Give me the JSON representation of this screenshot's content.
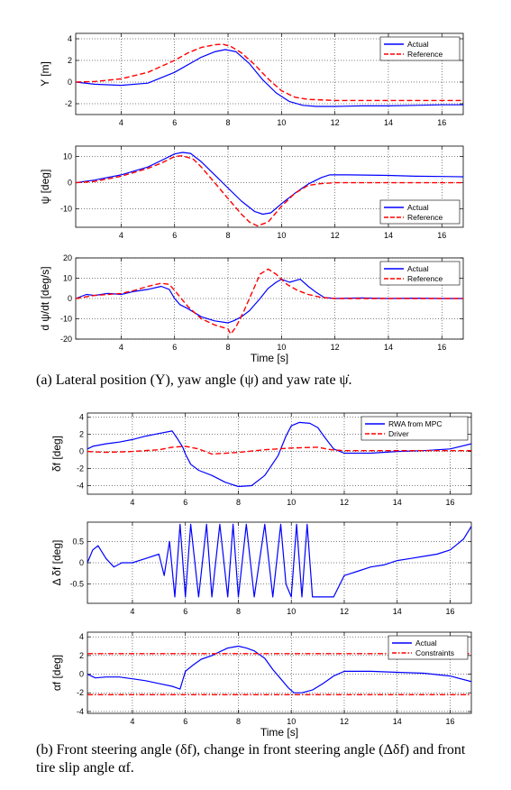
{
  "captions": {
    "a": "(a) Lateral position (Y), yaw angle (ψ) and yaw rate ψ̇.",
    "b": "(b) Front steering angle (δf), change in front steering angle (Δδf) and front tire slip angle αf."
  },
  "chart_data": [
    {
      "type": "line",
      "ylabel": "Y [m]",
      "xlabel": "",
      "xlim": [
        2.3,
        16.8
      ],
      "ylim": [
        -3,
        4.5
      ],
      "xticks": [
        4,
        6,
        8,
        10,
        12,
        14,
        16
      ],
      "yticks": [
        -2,
        0,
        2,
        4
      ],
      "grid": true,
      "legend_position": "top-right",
      "colors": {
        "Actual": "#0000ff",
        "Reference": "#ff0000"
      },
      "series": [
        {
          "name": "Actual",
          "style": "solid",
          "x": [
            2.3,
            3,
            4,
            5,
            6,
            7,
            7.5,
            7.9,
            8.3,
            8.8,
            9.3,
            9.8,
            10.3,
            10.8,
            11.3,
            12,
            13,
            14,
            15,
            16,
            16.8
          ],
          "y": [
            0,
            -0.2,
            -0.3,
            -0.1,
            0.9,
            2.3,
            2.8,
            3.0,
            2.8,
            1.7,
            0.2,
            -1.0,
            -1.8,
            -2.15,
            -2.25,
            -2.25,
            -2.2,
            -2.2,
            -2.15,
            -2.1,
            -2.1
          ]
        },
        {
          "name": "Reference",
          "style": "dashed",
          "x": [
            2.3,
            3,
            4,
            5,
            6,
            6.5,
            7,
            7.5,
            7.8,
            8.1,
            8.5,
            9,
            9.5,
            10,
            10.5,
            11,
            12,
            13,
            14,
            15,
            16,
            16.8
          ],
          "y": [
            0,
            0.05,
            0.3,
            0.9,
            2.0,
            2.7,
            3.2,
            3.45,
            3.5,
            3.3,
            2.7,
            1.6,
            0.3,
            -0.8,
            -1.4,
            -1.6,
            -1.7,
            -1.7,
            -1.7,
            -1.7,
            -1.7,
            -1.7
          ]
        }
      ]
    },
    {
      "type": "line",
      "ylabel": "ψ [deg]",
      "xlabel": "",
      "xlim": [
        2.3,
        16.8
      ],
      "ylim": [
        -17,
        14
      ],
      "xticks": [
        4,
        6,
        8,
        10,
        12,
        14,
        16
      ],
      "yticks": [
        -10,
        0,
        10
      ],
      "grid": true,
      "legend_position": "bottom-right",
      "colors": {
        "Actual": "#0000ff",
        "Reference": "#ff0000"
      },
      "series": [
        {
          "name": "Actual",
          "style": "solid",
          "x": [
            2.3,
            3,
            4,
            5,
            5.5,
            6,
            6.3,
            6.6,
            7,
            7.5,
            8,
            8.5,
            9,
            9.3,
            9.6,
            10,
            10.5,
            11,
            11.5,
            11.8,
            12.5,
            14,
            15,
            16,
            16.8
          ],
          "y": [
            0,
            1,
            3,
            6,
            8.5,
            11,
            11.6,
            11.2,
            8,
            3,
            -2,
            -7,
            -11,
            -12,
            -11.5,
            -8,
            -4,
            -0.5,
            2,
            3,
            3,
            2.8,
            2.5,
            2.4,
            2.3
          ]
        },
        {
          "name": "Reference",
          "style": "dashed",
          "x": [
            2.3,
            3,
            4,
            5,
            5.5,
            6,
            6.3,
            6.7,
            7,
            7.5,
            8,
            8.5,
            8.8,
            9.1,
            9.5,
            10,
            10.5,
            11,
            11.5,
            12,
            13,
            14,
            15,
            16,
            16.8
          ],
          "y": [
            0,
            0.5,
            2.5,
            5.5,
            7.5,
            10,
            10.3,
            9,
            6,
            0,
            -6,
            -12,
            -15,
            -16.5,
            -15,
            -9,
            -4,
            -1,
            -0.3,
            0,
            0,
            0,
            0,
            0,
            0
          ]
        }
      ]
    },
    {
      "type": "line",
      "ylabel": "d ψ/dt [deg/s]",
      "xlabel": "Time [s]",
      "xlim": [
        2.3,
        16.8
      ],
      "ylim": [
        -20,
        20
      ],
      "xticks": [
        4,
        6,
        8,
        10,
        12,
        14,
        16
      ],
      "yticks": [
        -20,
        -10,
        0,
        10,
        20
      ],
      "grid": true,
      "legend_position": "top-right",
      "colors": {
        "Actual": "#0000ff",
        "Reference": "#ff0000"
      },
      "series": [
        {
          "name": "Actual",
          "style": "solid",
          "x": [
            2.3,
            2.7,
            3,
            3.5,
            4,
            4.5,
            5,
            5.5,
            5.8,
            6,
            6.2,
            6.5,
            7,
            7.5,
            8,
            8.2,
            8.5,
            8.8,
            9.2,
            9.5,
            9.8,
            10,
            10.3,
            10.7,
            11,
            11.3,
            11.6,
            12,
            13,
            14,
            15,
            16,
            16.8
          ],
          "y": [
            0,
            2,
            1.5,
            2.5,
            2,
            3.5,
            4.5,
            6,
            4.5,
            0,
            -3,
            -5,
            -9,
            -11,
            -12,
            -11,
            -9,
            -6,
            0,
            5,
            8,
            9.5,
            8,
            9.5,
            6,
            3,
            0.5,
            0,
            0.3,
            0,
            0.2,
            0,
            0
          ]
        },
        {
          "name": "Reference",
          "style": "dashed",
          "x": [
            2.3,
            3,
            4,
            4.5,
            5,
            5.5,
            5.8,
            6,
            6.5,
            7,
            7.5,
            8,
            8.1,
            8.3,
            8.6,
            8.9,
            9.2,
            9.5,
            9.8,
            10.2,
            10.6,
            11,
            11.5,
            12,
            13,
            14,
            15,
            16,
            16.8
          ],
          "y": [
            0,
            1.5,
            2.5,
            4,
            6,
            7.5,
            7,
            4,
            -4,
            -10,
            -13,
            -15,
            -17.5,
            -14,
            -6,
            3,
            12,
            14.5,
            12,
            7,
            4,
            2,
            0.5,
            0,
            0,
            0,
            0,
            0,
            0
          ]
        }
      ]
    },
    {
      "type": "line",
      "ylabel": "δf [deg]",
      "xlabel": "",
      "xlim": [
        2.3,
        16.8
      ],
      "ylim": [
        -5,
        4.5
      ],
      "xticks": [
        4,
        6,
        8,
        10,
        12,
        14,
        16
      ],
      "yticks": [
        -4,
        -2,
        0,
        2,
        4
      ],
      "grid": true,
      "legend_position": "top-right",
      "colors": {
        "RWA from MPC": "#0000ff",
        "Driver": "#ff0000"
      },
      "series": [
        {
          "name": "RWA from MPC",
          "style": "solid",
          "x": [
            2.3,
            2.5,
            3,
            3.5,
            4,
            4.5,
            5,
            5.5,
            5.7,
            5.9,
            6,
            6.2,
            6.5,
            7,
            7.5,
            8,
            8.5,
            9,
            9.5,
            9.8,
            10,
            10.3,
            10.7,
            11,
            11.3,
            11.6,
            12,
            13,
            14,
            15,
            16,
            16.8
          ],
          "y": [
            0.3,
            0.6,
            0.9,
            1.1,
            1.4,
            1.8,
            2.1,
            2.4,
            1.5,
            0.5,
            -0.3,
            -1.5,
            -2.2,
            -2.8,
            -3.6,
            -4.1,
            -4.0,
            -2.8,
            -0.5,
            1.8,
            3.0,
            3.4,
            3.3,
            2.8,
            1.5,
            0.3,
            -0.2,
            -0.2,
            0,
            0.1,
            0.3,
            0.9
          ]
        },
        {
          "name": "Driver",
          "style": "dashed",
          "x": [
            2.3,
            3,
            4,
            5,
            5.5,
            6,
            6.5,
            7,
            8,
            9,
            10,
            11,
            11.5,
            12,
            13,
            14,
            15,
            16,
            16.8
          ],
          "y": [
            0,
            -0.1,
            0,
            0.2,
            0.5,
            0.6,
            0.3,
            -0.3,
            -0.1,
            0.2,
            0.4,
            0.5,
            0.2,
            0.1,
            0.1,
            0.1,
            0.1,
            0.1,
            0.1
          ]
        }
      ]
    },
    {
      "type": "line",
      "ylabel": "Δ δf [deg]",
      "xlabel": "",
      "xlim": [
        2.3,
        16.8
      ],
      "ylim": [
        -0.95,
        0.95
      ],
      "xticks": [
        4,
        6,
        8,
        10,
        12,
        14,
        16
      ],
      "yticks": [
        -0.5,
        0,
        0.5
      ],
      "grid": true,
      "legend_position": "none",
      "colors": {
        "line": "#0000ff"
      },
      "series": [
        {
          "name": "",
          "style": "solid",
          "x": [
            2.3,
            2.5,
            2.7,
            3,
            3.3,
            3.6,
            4,
            4.5,
            5,
            5.2,
            5.4,
            5.6,
            5.8,
            6.0,
            6.2,
            6.5,
            6.8,
            7.0,
            7.3,
            7.6,
            7.8,
            8.0,
            8.3,
            8.6,
            9.0,
            9.3,
            9.6,
            9.8,
            10.0,
            10.2,
            10.4,
            10.6,
            10.8,
            11.0,
            11.3,
            11.6,
            12,
            12.5,
            13,
            13.5,
            14,
            14.5,
            15,
            15.5,
            16,
            16.5,
            16.8
          ],
          "y": [
            0.0,
            0.3,
            0.4,
            0.1,
            -0.1,
            0.0,
            0.0,
            0.1,
            0.2,
            -0.3,
            0.5,
            -0.8,
            0.9,
            -0.8,
            0.9,
            -0.8,
            0.9,
            -0.8,
            0.9,
            -0.8,
            0.9,
            -0.8,
            0.9,
            -0.8,
            0.9,
            -0.8,
            0.9,
            -0.5,
            -0.8,
            0.9,
            -0.8,
            0.9,
            -0.8,
            -0.8,
            -0.8,
            -0.8,
            -0.3,
            -0.2,
            -0.1,
            -0.05,
            0.05,
            0.1,
            0.15,
            0.2,
            0.3,
            0.55,
            0.85
          ]
        }
      ]
    },
    {
      "type": "line",
      "ylabel": "αf [deg]",
      "xlabel": "Time [s]",
      "xlim": [
        2.3,
        16.8
      ],
      "ylim": [
        -4.2,
        4.5
      ],
      "xticks": [
        4,
        6,
        8,
        10,
        12,
        14,
        16
      ],
      "yticks": [
        -4,
        -2,
        0,
        2,
        4
      ],
      "grid": true,
      "legend_position": "top-right",
      "colors": {
        "Actual": "#0000ff",
        "Constraints": "#ff0000"
      },
      "series": [
        {
          "name": "Actual",
          "style": "solid",
          "x": [
            2.3,
            2.6,
            3,
            3.5,
            4,
            4.5,
            5,
            5.5,
            5.8,
            6,
            6.3,
            6.6,
            7,
            7.3,
            7.6,
            8,
            8.3,
            8.6,
            9,
            9.3,
            9.6,
            9.9,
            10.1,
            10.4,
            10.8,
            11.2,
            11.6,
            12,
            13,
            14,
            15,
            16,
            16.8
          ],
          "y": [
            0,
            -0.4,
            -0.3,
            -0.3,
            -0.5,
            -0.7,
            -1.0,
            -1.3,
            -1.6,
            0.3,
            1.0,
            1.6,
            2.0,
            2.4,
            2.8,
            3.0,
            2.8,
            2.5,
            1.7,
            0.5,
            -0.5,
            -1.5,
            -2.0,
            -2.0,
            -1.7,
            -1.0,
            -0.2,
            0.3,
            0.3,
            0.2,
            0.1,
            -0.2,
            -0.8
          ]
        },
        {
          "name": "Constraints",
          "style": "dashdot",
          "x": [
            2.3,
            16.8
          ],
          "y": [
            2.2,
            2.2
          ]
        },
        {
          "name": "Constraints",
          "style": "dashdot",
          "x": [
            2.3,
            16.8
          ],
          "y": [
            -2.2,
            -2.2
          ]
        }
      ]
    }
  ]
}
